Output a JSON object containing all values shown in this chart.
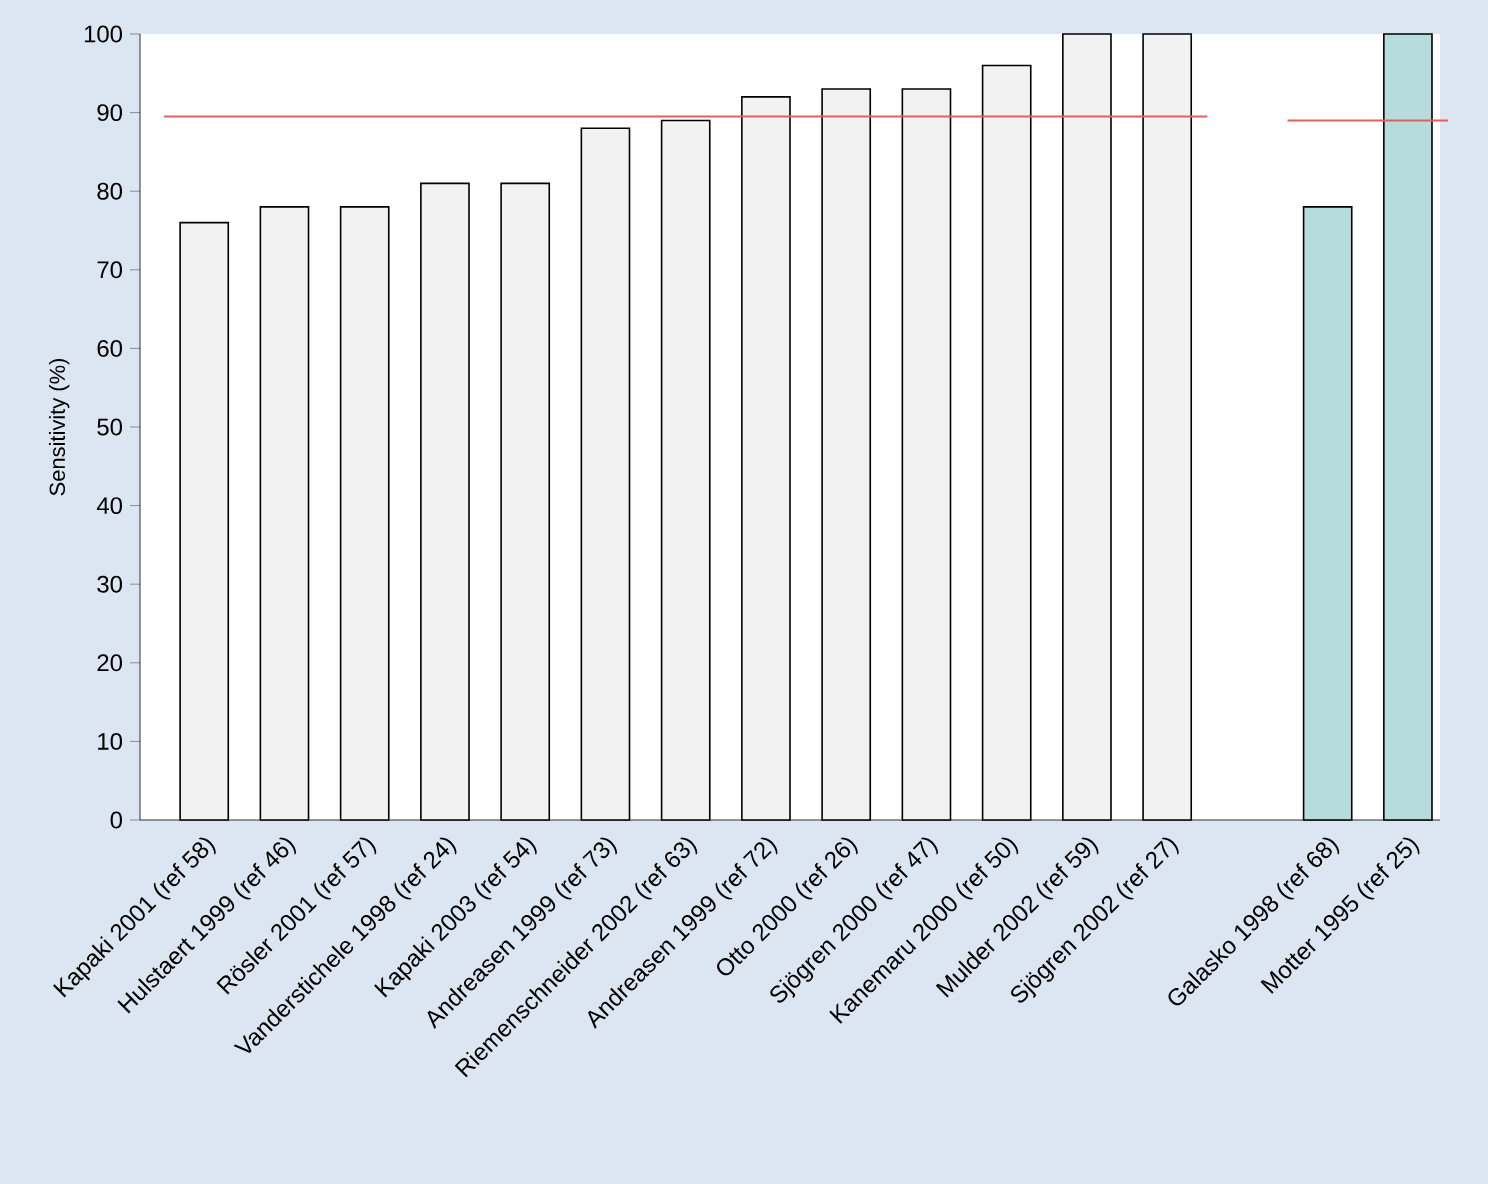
{
  "chart_data": {
    "type": "bar",
    "ylabel": "Sensitivity (%)",
    "categories": [
      "Kapaki 2001 (ref 58)",
      "Hulstaert 1999 (ref 46)",
      "Rösler 2001 (ref 57)",
      "Vanderstichele 1998 (ref 24)",
      "Kapaki  2003 (ref 54)",
      "Andreasen 1999 (ref 73)",
      "Riemenschneider 2002 (ref 63)",
      "Andreasen 1999 (ref 72)",
      "Otto 2000 (ref 26)",
      "Sjögren 2000 (ref 47)",
      "Kanemaru 2000 (ref 50)",
      "Mulder 2002 (ref 59)",
      "Sjögren 2002 (ref 27)",
      null,
      "Galasko 1998 (ref 68)",
      "Motter 1995 (ref 25)"
    ],
    "series": [
      {
        "color": "#f2f2f2",
        "values": [
          76,
          78,
          78,
          81,
          81,
          88,
          89,
          92,
          93,
          93,
          96,
          100,
          100,
          null,
          null,
          null
        ]
      },
      {
        "color": "#b7dcdd",
        "values": [
          null,
          null,
          null,
          null,
          null,
          null,
          null,
          null,
          null,
          null,
          null,
          null,
          null,
          null,
          78,
          100
        ]
      }
    ],
    "ylim": [
      0,
      100
    ],
    "yticks": [
      0,
      10,
      20,
      30,
      40,
      50,
      60,
      70,
      80,
      90,
      100
    ],
    "grid": false,
    "ref_lines": [
      {
        "axis": "y",
        "value": 89.5,
        "color": "#e06060"
      },
      {
        "axis": "y",
        "value": 89,
        "color": "#e06060"
      }
    ]
  }
}
